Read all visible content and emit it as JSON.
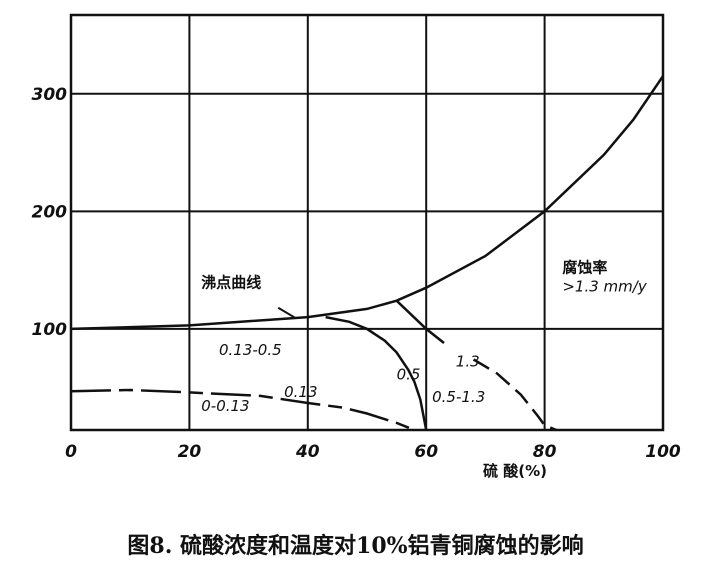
{
  "chart_data": {
    "type": "line",
    "title": "",
    "xlabel": "硫 酸(%)",
    "ylabel": "",
    "xlim": [
      0,
      100
    ],
    "ylim": [
      14,
      367
    ],
    "x_ticks": [
      "0",
      "20",
      "40",
      "60",
      "80",
      "100"
    ],
    "y_ticks": [
      "100",
      "200",
      "300"
    ],
    "grid": true,
    "series": [
      {
        "name": "沸点曲线",
        "style": "solid",
        "points": [
          [
            0,
            100
          ],
          [
            20,
            103
          ],
          [
            40,
            110
          ],
          [
            50,
            117
          ],
          [
            55,
            124
          ],
          [
            60,
            135
          ],
          [
            70,
            162
          ],
          [
            80,
            200
          ],
          [
            90,
            248
          ],
          [
            95,
            278
          ],
          [
            100,
            315
          ]
        ]
      },
      {
        "name": "0.5",
        "style": "solid",
        "points": [
          [
            43,
            110
          ],
          [
            47,
            106
          ],
          [
            50,
            100
          ],
          [
            53,
            90
          ],
          [
            55,
            80
          ],
          [
            57,
            65
          ],
          [
            58,
            55
          ],
          [
            59,
            40
          ],
          [
            60,
            14
          ]
        ]
      },
      {
        "name": "1.3",
        "style": "solid-then-dashed",
        "points": [
          [
            55,
            124
          ],
          [
            60,
            100
          ],
          [
            63,
            88
          ],
          [
            68,
            74
          ],
          [
            72,
            62
          ],
          [
            76,
            44
          ],
          [
            79,
            25
          ],
          [
            80,
            18
          ],
          [
            82,
            14
          ]
        ]
      },
      {
        "name": "0.13",
        "style": "dashed",
        "points": [
          [
            0,
            47
          ],
          [
            10,
            48
          ],
          [
            20,
            46
          ],
          [
            32,
            43
          ],
          [
            40,
            37
          ],
          [
            46,
            33
          ],
          [
            50,
            28
          ],
          [
            55,
            20
          ],
          [
            58,
            14
          ]
        ]
      }
    ],
    "annotations": [
      "沸点曲线",
      "腐蚀率",
      ">1.3 mm/y",
      "0.13-0.5",
      "0.5",
      "1.3",
      "0.5-1.3",
      "0.13",
      "0-0.13"
    ]
  },
  "caption": "图8. 硫酸浓度和温度对10%铝青铜腐蚀的影响",
  "colors": {
    "ink": "#111111",
    "background": "#ffffff"
  }
}
